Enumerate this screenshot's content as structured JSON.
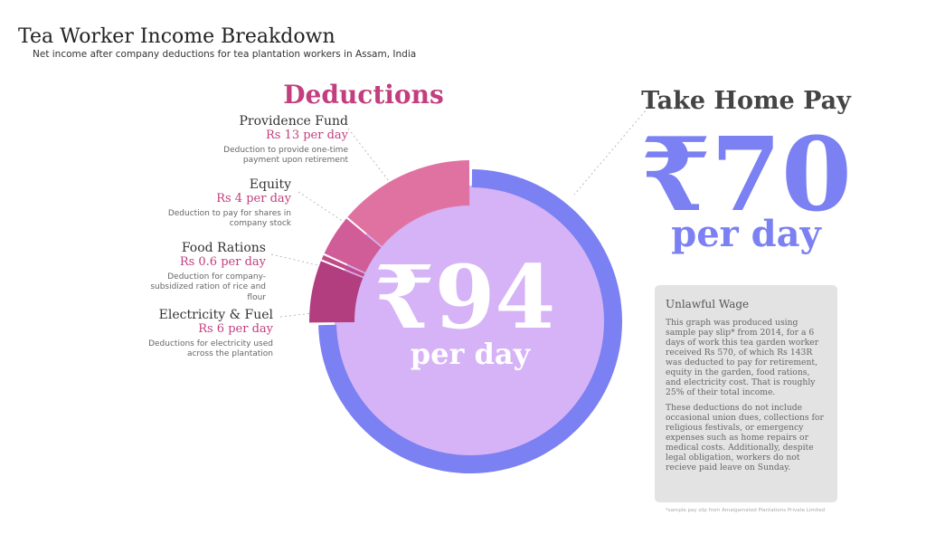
{
  "chart_data": {
    "type": "donut",
    "title": "Tea Worker Income Breakdown",
    "subtitle": "Net income after company deductions for tea plantation workers in Assam, India",
    "group_label": "Deductions",
    "center_label": "₹94",
    "center_sublabel": "per day",
    "categories": [
      "Take Home Pay",
      "Electricity & Fuel",
      "Food Rations",
      "Equity",
      "Providence Fund"
    ],
    "values": [
      70,
      6,
      0.6,
      4,
      13
    ],
    "value_labels": [
      "₹70",
      "Rs 6 per day",
      "Rs 0.6 per day",
      "Rs 4 per day",
      "Rs 13 per day"
    ],
    "unit_label": "per day",
    "colors": [
      "#7b80f2",
      "#b23d7f",
      "#c24a89",
      "#d05d97",
      "#e072a2"
    ],
    "descriptions": [
      null,
      "Deductions for electricity used across the plantation",
      "Deduction for company-subsidized ration of rice and flour",
      "Deduction to pay for shares in company stock",
      "Deduction to provide one-time payment upon retirement"
    ]
  },
  "sidebar": {
    "title": "Unlawful Wage",
    "paragraphs": [
      "This graph was produced using sample pay slip* from 2014, for a 6 days of work this tea garden worker received Rs 570, of which Rs 143R was deducted to pay for retirement, equity in the garden, food rations, and electricity cost. That is roughly 25% of their total income.",
      "These deductions do not include occasional union dues, collections for religious festivals, or emergency expenses such as home repairs or medical costs. Additionally, despite legal obligation, workers do not recieve paid leave on Sunday."
    ],
    "footnote": "*sample pay slip from Amalgamated Plantations Private Limited"
  }
}
